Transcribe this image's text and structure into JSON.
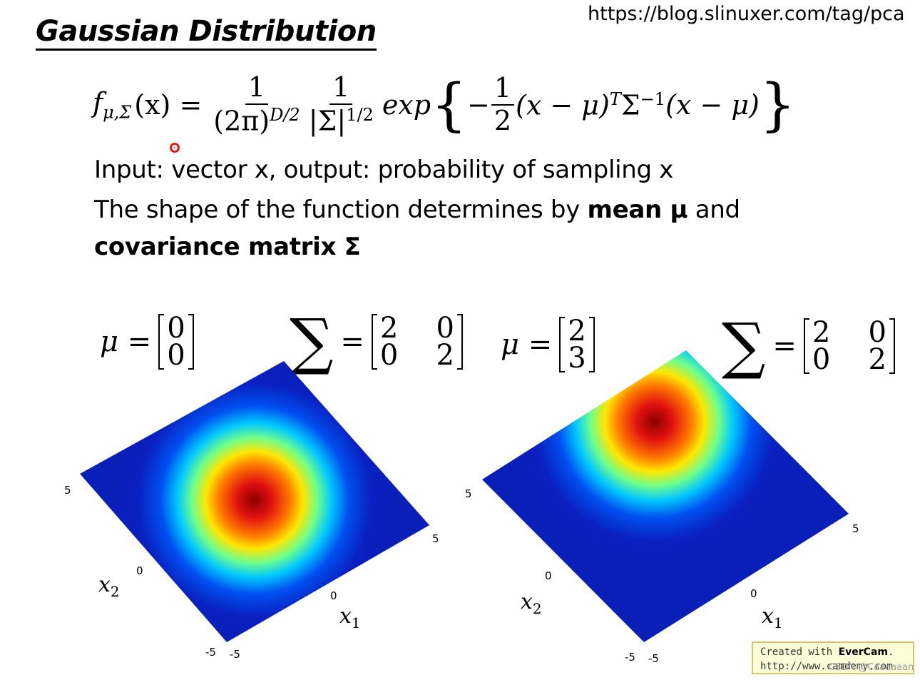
{
  "title": "Gaussian Distribution",
  "source_url": "https://blog.slinuxer.com/tag/pca",
  "formula": {
    "lhs": "f",
    "lhs_sub": "μ,Σ",
    "lhs_arg": "(x) =",
    "frac1_num": "1",
    "frac1_den": "(2π)",
    "frac1_den_sup": "D/2",
    "frac2_num": "1",
    "frac2_den": "|Σ|",
    "frac2_den_sup": "1/2",
    "exp": "exp",
    "open_brace": "{",
    "minus": "−",
    "half_num": "1",
    "half_den": "2",
    "term1": "(x − μ)",
    "term1_sup": "T",
    "sigma": "Σ",
    "sigma_sup": "−1",
    "term2": "(x − μ)",
    "close_brace": "}"
  },
  "text": {
    "line1": "Input: vector x, output: probability of sampling x",
    "line2_a": "The shape of the function determines by ",
    "line2_bold": "mean μ",
    "line2_b": " and",
    "line3_bold": "covariance matrix Σ"
  },
  "plots": [
    {
      "mu_label": "μ =",
      "mu": [
        "0",
        "0"
      ],
      "sigma_symbol": "∑",
      "eq": "=",
      "sigma": [
        [
          "2",
          "0"
        ],
        [
          "0",
          "2"
        ]
      ],
      "tick_x2_top": "5",
      "tick_x2_mid": "0",
      "tick_x2_bot": "-5",
      "tick_x1_left": "-5",
      "tick_x1_mid": "0",
      "tick_x1_right": "5",
      "xlabel": "x",
      "xlabel_sub": "1",
      "ylabel": "x",
      "ylabel_sub": "2"
    },
    {
      "mu_label": "μ =",
      "mu": [
        "2",
        "3"
      ],
      "sigma_symbol": "∑",
      "eq": "=",
      "sigma": [
        [
          "2",
          "0"
        ],
        [
          "0",
          "2"
        ]
      ],
      "tick_x2_top": "5",
      "tick_x2_mid": "0",
      "tick_x2_bot": "-5",
      "tick_x1_left": "-5",
      "tick_x1_mid": "0",
      "tick_x1_right": "5",
      "xlabel": "x",
      "xlabel_sub": "1",
      "ylabel": "x",
      "ylabel_sub": "2"
    }
  ],
  "watermark": {
    "line1_a": "Created with ",
    "line1_b": "EverCam",
    "line1_c": ".",
    "line2": "http://www.camdemy.com",
    "csdn": "CSDN @Caaaaaan"
  },
  "colors": {
    "jet_low": "#0a1fb8",
    "jet_peak": "#8b0000",
    "cursor": "#e31b1b"
  }
}
